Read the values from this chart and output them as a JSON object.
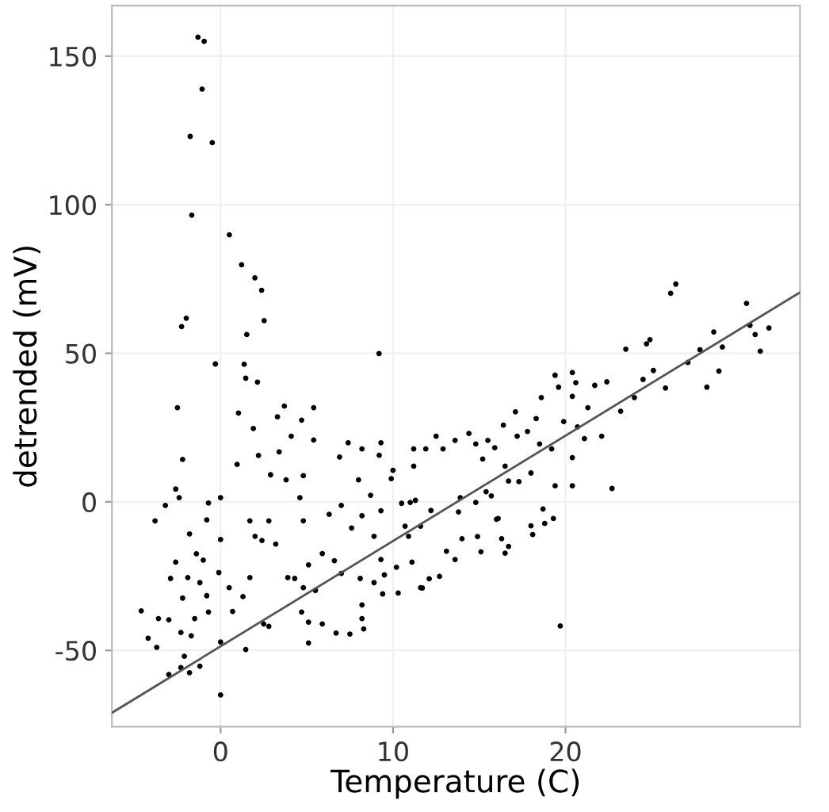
{
  "chart_data": {
    "type": "scatter",
    "xlabel": "Temperature (C)",
    "ylabel": "detrended (mV)",
    "xlim": [
      -6.3,
      33.6
    ],
    "ylim": [
      -75.7,
      167
    ],
    "xticks": [
      0,
      10,
      20
    ],
    "yticks": [
      -50,
      0,
      50,
      100,
      150
    ],
    "grid": true,
    "marker": "circle",
    "series": [
      {
        "color": "#000000",
        "x": [
          -1.31,
          -0.95,
          -1.07,
          -1.76,
          -0.48,
          -1.67,
          0.51,
          1.22,
          1.99,
          2.38,
          2.53,
          -1.99,
          -2.26,
          1.52,
          9.19,
          -0.3,
          1.37,
          1.46,
          2.14,
          -2.5,
          -2.2,
          -2.6,
          -2.4,
          -3.2,
          -3.8,
          -1.8,
          -2.6,
          -2.9,
          -1.9,
          -2.2,
          -4.6,
          -3.6,
          -3.0,
          -4.2,
          -3.7,
          -2.3,
          -3.0,
          -2.3,
          -2.1,
          -1.8,
          -1.2,
          -1.7,
          -1.5,
          -0.7,
          -0.8,
          -1.2,
          -1.0,
          -1.4,
          -0.7,
          -0.8,
          0.0,
          0.0,
          -0.1,
          0.0,
          0.0,
          0.5,
          0.7,
          0.96,
          1.04,
          1.46,
          1.7,
          1.3,
          1.7,
          1.9,
          2.2,
          2.0,
          2.4,
          2.5,
          2.8,
          2.9,
          2.8,
          3.2,
          3.3,
          3.7,
          3.4,
          4.1,
          3.8,
          3.9,
          4.3,
          4.6,
          4.8,
          4.7,
          5.4,
          5.4,
          4.8,
          5.1,
          4.8,
          4.7,
          5.1,
          5.1,
          5.9,
          5.5,
          5.9,
          6.3,
          6.6,
          7.0,
          6.7,
          7.4,
          6.9,
          7.0,
          7.6,
          8.1,
          8.2,
          8.3,
          8.2,
          7.5,
          8.2,
          8.0,
          8.2,
          9.3,
          9.2,
          8.7,
          9.3,
          8.9,
          9.3,
          8.9,
          9.5,
          9.4,
          10.3,
          10.2,
          10.0,
          9.9,
          10.5,
          11.0,
          11.2,
          10.7,
          10.9,
          11.1,
          11.6,
          11.6,
          26.4,
          26.1,
          30.5,
          30.7,
          31.8,
          31.3,
          31.0,
          28.6,
          29.1,
          28.9,
          28.2,
          27.8,
          27.1,
          25.8,
          24.9,
          24.7,
          23.5,
          25.1,
          24.5,
          24.0,
          23.2,
          22.7,
          22.1,
          22.4,
          21.7,
          21.3,
          20.6,
          20.4,
          19.4,
          19.6,
          20.4,
          19.9,
          20.7,
          21.1,
          20.4,
          20.4,
          19.4,
          19.7,
          19.3,
          18.8,
          18.7,
          18.6,
          18.3,
          17.8,
          17.1,
          16.4,
          17.2,
          18.0,
          17.3,
          16.5,
          15.9,
          15.5,
          15.2,
          14.8,
          14.4,
          13.6,
          12.9,
          12.5,
          11.9,
          15.7,
          15.4,
          16.7,
          16.1,
          14.8,
          14.9,
          16.0,
          16.3,
          16.7,
          16.5,
          15.1,
          14.0,
          13.6,
          13.1,
          12.7,
          11.7,
          12.1,
          13.8,
          13.9,
          12.2,
          11.3,
          18.0,
          18.1,
          19.2,
          18.5,
          11.2
        ],
        "values": [
          156.4,
          155.0,
          138.9,
          123.0,
          120.9,
          96.5,
          89.9,
          79.8,
          75.4,
          71.2,
          61.0,
          61.8,
          59.0,
          56.3,
          49.9,
          46.4,
          46.3,
          41.6,
          40.3,
          31.7,
          14.3,
          4.3,
          1.4,
          -1.2,
          -6.4,
          -10.8,
          -20.3,
          -25.8,
          -25.5,
          -32.4,
          -36.7,
          -39.3,
          -39.7,
          -45.9,
          -49.0,
          -44.0,
          -58.1,
          -55.8,
          -52.0,
          -57.5,
          -55.3,
          -45.1,
          -39.3,
          -37.1,
          -31.6,
          -27.2,
          -19.6,
          -17.5,
          -0.4,
          -6.1,
          -12.7,
          1.4,
          -23.8,
          -47.2,
          -65.0,
          -28.9,
          -36.9,
          12.6,
          29.9,
          -49.7,
          -6.4,
          -31.9,
          -25.5,
          24.7,
          15.6,
          -11.6,
          -13.0,
          -41.1,
          -41.9,
          9.1,
          -6.4,
          -14.2,
          28.6,
          32.2,
          16.8,
          22.1,
          7.4,
          -25.5,
          -25.8,
          1.4,
          8.8,
          27.5,
          31.7,
          20.8,
          -6.4,
          -21.2,
          -28.9,
          -37.1,
          -40.5,
          -47.5,
          -41.1,
          -29.8,
          -17.4,
          -4.2,
          -19.8,
          -24.1,
          -44.2,
          19.9,
          15.1,
          -1.2,
          -8.8,
          -25.8,
          -34.7,
          -42.8,
          -39.3,
          -44.5,
          17.8,
          7.4,
          -4.7,
          19.9,
          15.7,
          2.2,
          -3.0,
          -11.6,
          -19.4,
          -27.2,
          -24.6,
          -31.0,
          -30.7,
          -22.0,
          10.6,
          7.8,
          -0.5,
          -0.2,
          17.8,
          -8.2,
          -11.6,
          -20.3,
          -28.9,
          -8.2,
          73.3,
          70.2,
          66.8,
          59.4,
          58.5,
          50.7,
          56.3,
          57.2,
          52.1,
          44.0,
          38.6,
          51.2,
          46.9,
          38.3,
          54.6,
          53.2,
          51.4,
          44.2,
          41.2,
          35.1,
          30.5,
          4.5,
          22.1,
          40.4,
          39.2,
          31.7,
          40.1,
          43.5,
          42.6,
          38.6,
          35.5,
          27.0,
          25.2,
          21.3,
          14.9,
          5.4,
          5.4,
          -41.8,
          -5.6,
          -7.3,
          -2.4,
          35.1,
          28.0,
          23.7,
          30.3,
          25.8,
          22.1,
          9.7,
          6.8,
          12.0,
          18.2,
          20.7,
          14.4,
          19.5,
          23.0,
          20.7,
          17.8,
          22.1,
          17.8,
          2.0,
          3.4,
          7.0,
          -5.6,
          -0.2,
          -11.7,
          -5.9,
          -12.4,
          -15.0,
          -17.3,
          -16.8,
          -12.4,
          -19.4,
          -16.6,
          -25.1,
          -29.0,
          -25.9,
          -3.4,
          1.4,
          -2.9,
          0.5,
          -8.1,
          -11.0,
          17.8,
          19.5,
          12.0
        ]
      },
      {
        "type": "line",
        "color": "#555555",
        "x": [
          -6.3,
          33.6
        ],
        "values": [
          -71.0,
          70.5
        ],
        "marker": "none"
      }
    ]
  }
}
